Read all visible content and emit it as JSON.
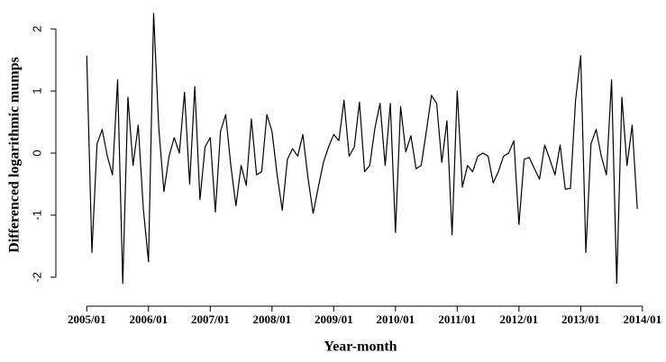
{
  "chart_data": {
    "type": "line",
    "x_label": "Year-month",
    "y_label": "Differenced logarithmic mumps",
    "x": [
      "2005/01",
      "2005/02",
      "2005/03",
      "2005/04",
      "2005/05",
      "2005/06",
      "2005/07",
      "2005/08",
      "2005/09",
      "2005/10",
      "2005/11",
      "2005/12",
      "2006/01",
      "2006/02",
      "2006/03",
      "2006/04",
      "2006/05",
      "2006/06",
      "2006/07",
      "2006/08",
      "2006/09",
      "2006/10",
      "2006/11",
      "2006/12",
      "2007/01",
      "2007/02",
      "2007/03",
      "2007/04",
      "2007/05",
      "2007/06",
      "2007/07",
      "2007/08",
      "2007/09",
      "2007/10",
      "2007/11",
      "2007/12",
      "2008/01",
      "2008/02",
      "2008/03",
      "2008/04",
      "2008/05",
      "2008/06",
      "2008/07",
      "2008/08",
      "2008/09",
      "2008/10",
      "2008/11",
      "2008/12",
      "2009/01",
      "2009/02",
      "2009/03",
      "2009/04",
      "2009/05",
      "2009/06",
      "2009/07",
      "2009/08",
      "2009/09",
      "2009/10",
      "2009/11",
      "2009/12",
      "2010/01",
      "2010/02",
      "2010/03",
      "2010/04",
      "2010/05",
      "2010/06",
      "2010/07",
      "2010/08",
      "2010/09",
      "2010/10",
      "2010/11",
      "2010/12",
      "2011/01",
      "2011/02",
      "2011/03",
      "2011/04",
      "2011/05",
      "2011/06",
      "2011/07",
      "2011/08",
      "2011/09",
      "2011/10",
      "2011/11",
      "2011/12",
      "2012/01",
      "2012/02",
      "2012/03",
      "2012/04",
      "2012/05",
      "2012/06",
      "2012/07",
      "2012/08",
      "2012/09",
      "2012/10",
      "2012/11",
      "2012/12",
      "2013/01",
      "2013/02",
      "2013/03",
      "2013/04",
      "2013/05",
      "2013/06",
      "2013/07",
      "2013/08",
      "2013/09",
      "2013/10",
      "2013/11",
      "2013/12"
    ],
    "series": [
      {
        "color": "#000000",
        "values": [
          1.57,
          -1.6,
          0.15,
          0.38,
          -0.05,
          -0.35,
          1.18,
          -2.1,
          0.9,
          -0.2,
          0.45,
          -0.9,
          -1.75,
          2.25,
          0.4,
          -0.62,
          -0.05,
          0.25,
          0.0,
          0.98,
          -0.5,
          1.07,
          -0.75,
          0.1,
          0.25,
          -0.95,
          0.35,
          0.62,
          -0.2,
          -0.85,
          -0.2,
          -0.52,
          0.55,
          -0.35,
          -0.3,
          0.62,
          0.35,
          -0.35,
          -0.92,
          -0.1,
          0.07,
          -0.05,
          0.3,
          -0.4,
          -0.97,
          -0.55,
          -0.15,
          0.1,
          0.3,
          0.2,
          0.85,
          -0.05,
          0.1,
          0.82,
          -0.3,
          -0.2,
          0.4,
          0.8,
          -0.2,
          0.8,
          -1.28,
          0.75,
          0.02,
          0.28,
          -0.25,
          -0.2,
          0.35,
          0.93,
          0.8,
          -0.15,
          0.52,
          -1.32,
          1.0,
          -0.55,
          -0.2,
          -0.3,
          -0.05,
          0.0,
          -0.05,
          -0.48,
          -0.3,
          -0.05,
          0.0,
          0.2,
          -1.15,
          -0.1,
          -0.07,
          -0.25,
          -0.42,
          0.13,
          -0.1,
          -0.35,
          0.13,
          -0.58,
          -0.57,
          0.85,
          1.57,
          -1.6,
          0.15,
          0.38,
          -0.05,
          -0.35,
          1.18,
          -2.1,
          0.9,
          -0.2,
          0.45,
          -0.9
        ]
      }
    ],
    "xlim": [
      "2004/07",
      "2014/04"
    ],
    "xticks": [
      "2005/01",
      "2006/01",
      "2007/01",
      "2008/01",
      "2009/01",
      "2010/01",
      "2011/01",
      "2012/01",
      "2013/01",
      "2014/01"
    ],
    "ylim": [
      -2.35,
      2.35
    ],
    "yticks": [
      -2,
      -1,
      0,
      1,
      2
    ]
  }
}
